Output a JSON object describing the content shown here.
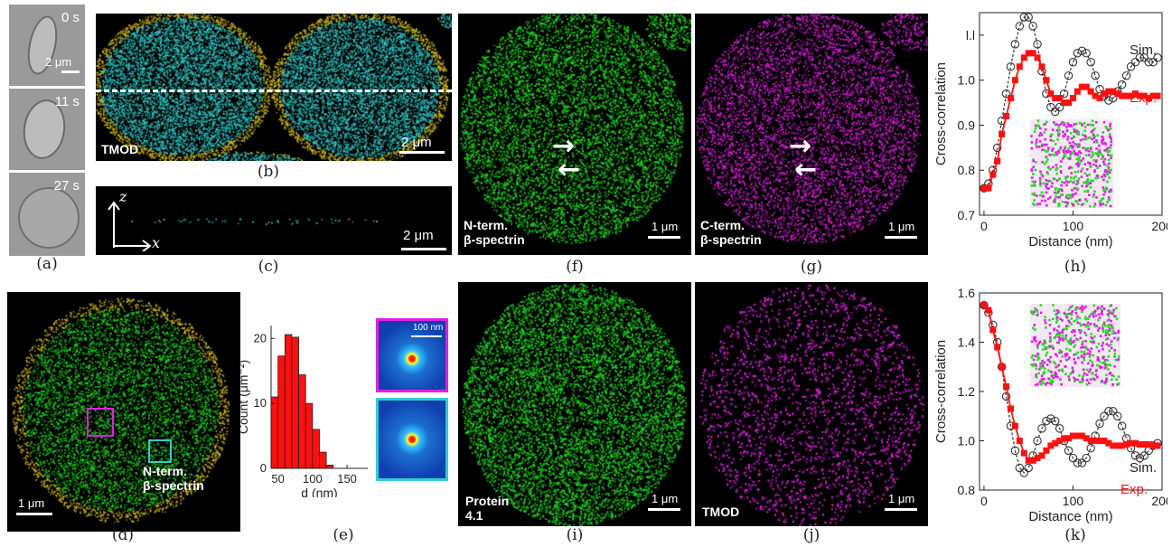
{
  "panel_a": {
    "times": [
      "0 s",
      "11 s",
      "27 s"
    ],
    "scale": "2 μm",
    "caption": "(a)"
  },
  "panel_b": {
    "label": "TMOD",
    "scale": "2 μm",
    "caption": "(b)"
  },
  "panel_c": {
    "axis_z": "z",
    "axis_x": "x",
    "scale": "2 μm",
    "caption": "(c)"
  },
  "panel_d": {
    "label": "N-term.\nβ-spectrin",
    "scale": "1 μm",
    "caption": "(d)"
  },
  "panel_e": {
    "inset_scale": "100 nm",
    "caption": "(e)"
  },
  "panel_f": {
    "label": "N-term.\nβ-spectrin",
    "scale": "1 μm",
    "caption": "(f)"
  },
  "panel_g": {
    "label": "C-term.\nβ-spectrin",
    "scale": "1 μm",
    "caption": "(g)"
  },
  "panel_h": {
    "caption": "(h)"
  },
  "panel_i": {
    "label": "Protein\n4.1",
    "scale": "1 μm",
    "caption": "(i)"
  },
  "panel_j": {
    "label": "TMOD",
    "scale": "1 μm",
    "caption": "(j)"
  },
  "panel_k": {
    "caption": "(k)"
  },
  "colors": {
    "green": "#22dd22",
    "magenta": "#e020e0",
    "cyan": "#33cccc",
    "yellow": "#d8c020",
    "red": "#ff1010"
  },
  "chart_data": [
    {
      "id": "e",
      "type": "bar",
      "xlabel": "d (nm)",
      "ylabel": "Count (μm⁻²)",
      "xlim": [
        40,
        180
      ],
      "ylim": [
        0,
        22
      ],
      "xticks": [
        50,
        100,
        150
      ],
      "yticks": [
        0,
        10,
        20
      ],
      "bin_width": 10,
      "bins": [
        45,
        55,
        65,
        75,
        85,
        95,
        105,
        115,
        125
      ],
      "values": [
        11,
        17.3,
        20.6,
        20.2,
        14.4,
        10,
        6,
        2.5,
        0.5
      ],
      "color": "#ff1010"
    },
    {
      "id": "h",
      "type": "line",
      "xlabel": "Distance (nm)",
      "ylabel": "Cross-correlation",
      "xlim": [
        -5,
        200
      ],
      "ylim": [
        0.7,
        1.15
      ],
      "xticks": [
        0,
        100,
        200
      ],
      "yticks": [
        0.7,
        0.8,
        0.9,
        1.0,
        1.1
      ],
      "ytick_labels": [
        "0.7",
        "0.8",
        "0.9",
        "1.0",
        "l.l"
      ],
      "series": [
        {
          "name": "Sim.",
          "color": "#333333",
          "marker": "circle",
          "dashed": true,
          "x": [
            0,
            5,
            10,
            15,
            20,
            25,
            30,
            35,
            40,
            45,
            50,
            55,
            60,
            65,
            70,
            75,
            80,
            85,
            90,
            95,
            100,
            105,
            110,
            115,
            120,
            125,
            130,
            135,
            140,
            145,
            150,
            155,
            160,
            165,
            170,
            175,
            180,
            185,
            190,
            195
          ],
          "y": [
            0.76,
            0.77,
            0.8,
            0.85,
            0.91,
            0.97,
            1.03,
            1.08,
            1.12,
            1.14,
            1.14,
            1.12,
            1.08,
            1.02,
            0.97,
            0.94,
            0.93,
            0.94,
            0.97,
            1.01,
            1.04,
            1.06,
            1.065,
            1.06,
            1.04,
            1.01,
            0.98,
            0.965,
            0.955,
            0.96,
            0.975,
            0.99,
            1.01,
            1.03,
            1.04,
            1.05,
            1.05,
            1.04,
            1.04,
            1.05
          ]
        },
        {
          "name": "Exp.",
          "color": "#ff1010",
          "marker": "square",
          "dashed": false,
          "x": [
            0,
            5,
            10,
            15,
            20,
            25,
            30,
            35,
            40,
            45,
            50,
            55,
            60,
            65,
            70,
            75,
            80,
            85,
            90,
            95,
            100,
            105,
            110,
            115,
            120,
            125,
            130,
            135,
            140,
            145,
            150,
            155,
            160,
            165,
            170,
            175,
            180,
            185,
            190,
            195
          ],
          "y": [
            0.76,
            0.76,
            0.79,
            0.82,
            0.88,
            0.92,
            0.96,
            1.0,
            1.03,
            1.05,
            1.06,
            1.06,
            1.05,
            1.03,
            1.0,
            0.97,
            0.96,
            0.96,
            0.95,
            0.95,
            0.96,
            0.975,
            0.985,
            0.985,
            0.975,
            0.965,
            0.96,
            0.97,
            0.975,
            0.975,
            0.97,
            0.965,
            0.965,
            0.965,
            0.97,
            0.965,
            0.965,
            0.96,
            0.965,
            0.965
          ]
        }
      ]
    },
    {
      "id": "k",
      "type": "line",
      "xlabel": "Distance (nm)",
      "ylabel": "Cross-correlation",
      "xlim": [
        -5,
        200
      ],
      "ylim": [
        0.8,
        1.6
      ],
      "xticks": [
        0,
        100,
        200
      ],
      "yticks": [
        0.8,
        1.0,
        1.2,
        1.4,
        1.6
      ],
      "ytick_labels": [
        "0.8",
        "1.0",
        "1.2",
        "1.4",
        "1.6"
      ],
      "series": [
        {
          "name": "Sim.",
          "color": "#333333",
          "marker": "circle",
          "dashed": true,
          "x": [
            0,
            5,
            10,
            15,
            20,
            25,
            30,
            35,
            40,
            45,
            50,
            55,
            60,
            65,
            70,
            75,
            80,
            85,
            90,
            95,
            100,
            105,
            110,
            115,
            120,
            125,
            130,
            135,
            140,
            145,
            150,
            155,
            160,
            165,
            170,
            175,
            180,
            185,
            190,
            195
          ],
          "y": [
            1.55,
            1.52,
            1.47,
            1.4,
            1.3,
            1.18,
            1.06,
            0.96,
            0.89,
            0.87,
            0.89,
            0.94,
            1.0,
            1.05,
            1.08,
            1.09,
            1.08,
            1.05,
            1.0,
            0.96,
            0.93,
            0.91,
            0.91,
            0.93,
            0.97,
            1.02,
            1.07,
            1.1,
            1.12,
            1.12,
            1.1,
            1.06,
            1.01,
            0.97,
            0.94,
            0.93,
            0.94,
            0.96,
            0.98,
            0.99
          ]
        },
        {
          "name": "Exp.",
          "color": "#ff1010",
          "marker": "square",
          "dashed": false,
          "x": [
            0,
            5,
            10,
            15,
            20,
            25,
            30,
            35,
            40,
            45,
            50,
            55,
            60,
            65,
            70,
            75,
            80,
            85,
            90,
            95,
            100,
            105,
            110,
            115,
            120,
            125,
            130,
            135,
            140,
            145,
            150,
            155,
            160,
            165,
            170,
            175,
            180,
            185,
            190,
            195
          ],
          "y": [
            1.55,
            1.53,
            1.45,
            1.38,
            1.3,
            1.22,
            1.13,
            1.06,
            1.0,
            0.95,
            0.92,
            0.92,
            0.93,
            0.94,
            0.96,
            0.98,
            0.99,
            1.0,
            1.01,
            1.01,
            1.02,
            1.02,
            1.02,
            1.01,
            1.0,
            1.0,
            1.0,
            1.0,
            0.99,
            0.98,
            0.98,
            0.98,
            0.985,
            0.99,
            0.99,
            0.985,
            0.985,
            0.985,
            0.98,
            0.98
          ]
        }
      ]
    }
  ]
}
